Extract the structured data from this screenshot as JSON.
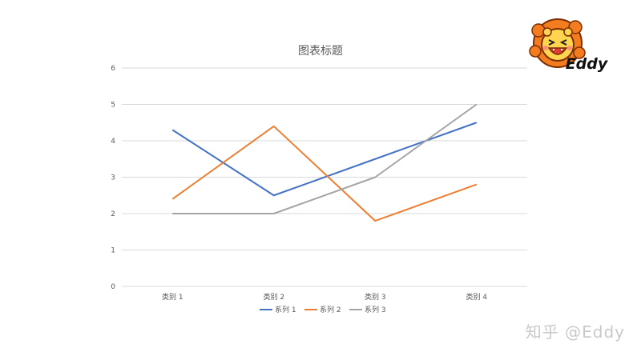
{
  "chart_data": {
    "type": "line",
    "title": "图表标题",
    "xlabel": "",
    "ylabel": "",
    "categories": [
      "类别 1",
      "类别 2",
      "类别 3",
      "类别 4"
    ],
    "ylim": [
      0,
      6
    ],
    "yticks": [
      0,
      1,
      2,
      3,
      4,
      5,
      6
    ],
    "grid": true,
    "legend_position": "bottom",
    "series": [
      {
        "name": "系列 1",
        "values": [
          4.3,
          2.5,
          3.5,
          4.5
        ],
        "color": "#4472c4"
      },
      {
        "name": "系列 2",
        "values": [
          2.4,
          4.4,
          1.8,
          2.8
        ],
        "color": "#ed7d31"
      },
      {
        "name": "系列 3",
        "values": [
          2.0,
          2.0,
          3.0,
          5.0
        ],
        "color": "#a5a5a5"
      }
    ]
  },
  "watermark": {
    "text": "知乎 @Eddy"
  },
  "logo": {
    "text": "Eddy",
    "icon": "lion-icon"
  },
  "colors": {
    "grid": "#d9d9d9",
    "text": "#595959",
    "lion_mane": "#f47c20",
    "lion_face": "#ffd54f"
  }
}
